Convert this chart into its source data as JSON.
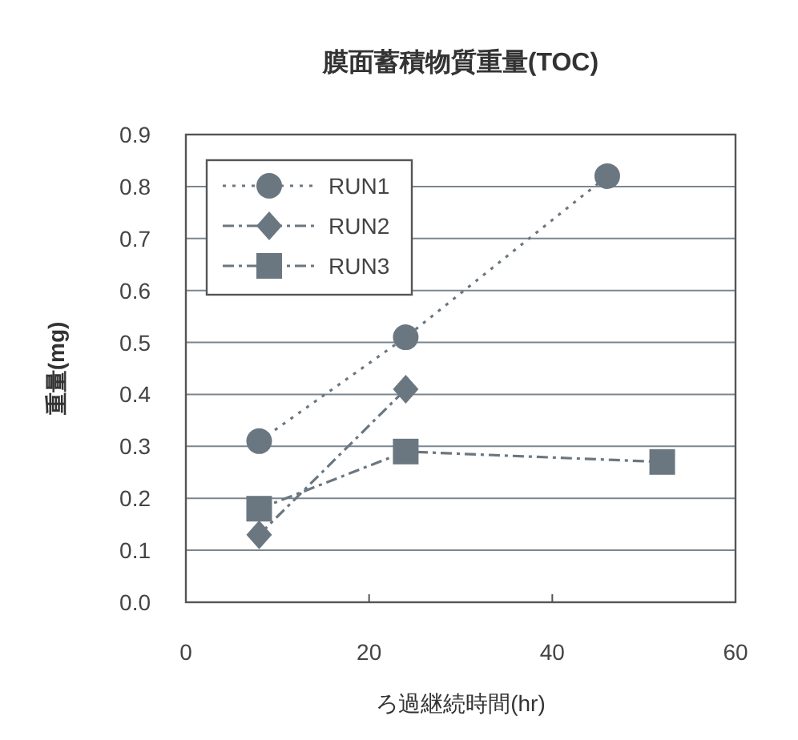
{
  "chart_data": {
    "type": "line",
    "title": "膜面蓄積物質重量(TOC)",
    "xlabel": "ろ過継続時間(hr)",
    "ylabel": "重量(mg)",
    "xlim": [
      0,
      60
    ],
    "xticks": [
      0,
      20,
      40,
      60
    ],
    "ylim": [
      0,
      0.9
    ],
    "yticks": [
      {
        "value": 0,
        "label": "0.0"
      },
      0.1,
      0.2,
      0.3,
      0.4,
      0.5,
      0.6,
      0.7,
      0.8,
      0.9
    ],
    "grid": "y",
    "legend": "top left",
    "series": [
      {
        "name": "RUN1",
        "color": "#6b7780",
        "marker": "circle",
        "line_style": "dotted",
        "x": [
          8,
          24,
          46
        ],
        "values": [
          0.31,
          0.51,
          0.82
        ]
      },
      {
        "name": "RUN2",
        "color": "#6b7780",
        "marker": "diamond",
        "line_style": "dashed",
        "x": [
          8,
          24
        ],
        "values": [
          0.13,
          0.41
        ]
      },
      {
        "name": "RUN3",
        "color": "#6b7780",
        "marker": "square",
        "line_style": "dashed",
        "x": [
          8,
          24,
          52
        ],
        "values": [
          0.18,
          0.29,
          0.27
        ]
      }
    ]
  }
}
